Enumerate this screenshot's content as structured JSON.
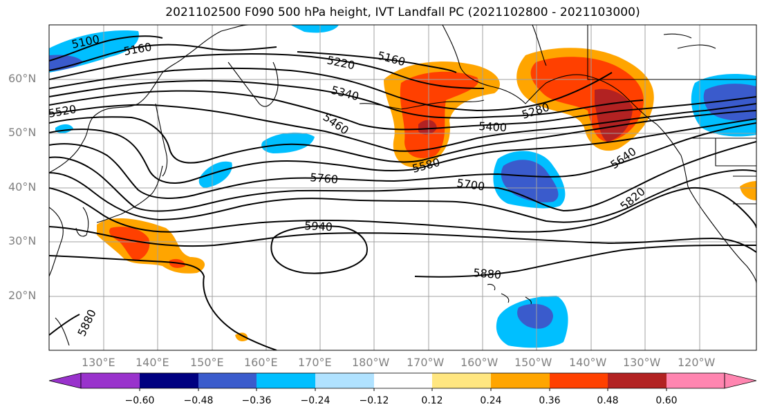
{
  "title": "2021102500 F090 500 hPa height, IVT Landfall PC (2021102800 - 2021103000)",
  "map": {
    "lat_ticks": [
      "60°N",
      "50°N",
      "40°N",
      "30°N",
      "20°N"
    ],
    "lon_ticks": [
      "130°E",
      "140°E",
      "150°E",
      "160°E",
      "170°E",
      "180°W",
      "170°W",
      "160°W",
      "150°W",
      "140°W",
      "130°W",
      "120°W"
    ],
    "contour_labels": [
      "5100",
      "5160",
      "5220",
      "5160",
      "5340",
      "5520",
      "5460",
      "5280",
      "5400",
      "5580",
      "5640",
      "5760",
      "5700",
      "5820",
      "5940",
      "5880",
      "5880"
    ]
  },
  "colorbar": {
    "ticks": [
      "−0.60",
      "−0.48",
      "−0.36",
      "−0.24",
      "−0.12",
      "0.12",
      "0.24",
      "0.36",
      "0.48",
      "0.60"
    ],
    "colors": [
      "#9932cc",
      "#000080",
      "#3a5bcc",
      "#00bfff",
      "#b0e2ff",
      "#ffffff",
      "#ffe680",
      "#ffa500",
      "#ff4000",
      "#b22222",
      "#ff85b0"
    ]
  },
  "colors": {
    "shading_orange": "#ffa500",
    "shading_redorange": "#ff4000",
    "shading_darkred": "#b22222",
    "shading_lightyellow": "#ffe680",
    "shading_skyblue": "#00bfff",
    "shading_lightblue": "#b0e2ff",
    "shading_royal": "#3a5bcc"
  }
}
